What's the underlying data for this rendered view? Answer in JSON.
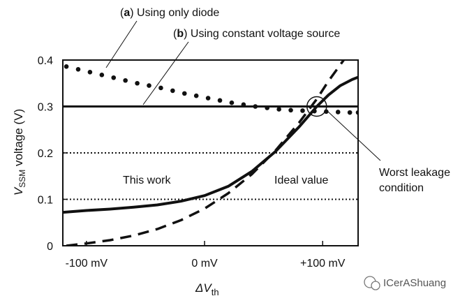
{
  "chart_data": {
    "type": "line",
    "xlabel": "ΔV",
    "xlabel_sub": "th",
    "ylabel_v": "V",
    "ylabel_sub": "SSM",
    "ylabel_rest": " voltage (V)",
    "xlim": [
      -120,
      130
    ],
    "ylim": [
      0,
      0.4
    ],
    "x_ticks": [
      {
        "value": -100,
        "label": "-100 mV"
      },
      {
        "value": 0,
        "label": "0 mV"
      },
      {
        "value": 100,
        "label": "+100 mV"
      }
    ],
    "y_ticks": [
      {
        "value": 0,
        "label": "0"
      },
      {
        "value": 0.1,
        "label": "0.1"
      },
      {
        "value": 0.2,
        "label": "0.2"
      },
      {
        "value": 0.3,
        "label": "0.3"
      },
      {
        "value": 0.4,
        "label": "0.4"
      }
    ],
    "reference_lines": [
      {
        "y": 0.2,
        "style": "dotted"
      },
      {
        "y": 0.1,
        "style": "dotted"
      }
    ],
    "series": [
      {
        "id": "a",
        "style": "dots",
        "x": [
          -117,
          -107,
          -97,
          -87,
          -77,
          -67,
          -57,
          -47,
          -37,
          -27,
          -17,
          -7,
          3,
          13,
          23,
          33,
          43,
          53,
          63,
          73,
          83,
          93,
          103,
          113,
          123,
          130
        ],
        "y": [
          0.386,
          0.38,
          0.374,
          0.368,
          0.362,
          0.356,
          0.35,
          0.345,
          0.34,
          0.334,
          0.328,
          0.323,
          0.318,
          0.313,
          0.308,
          0.304,
          0.3,
          0.297,
          0.294,
          0.292,
          0.291,
          0.29,
          0.289,
          0.288,
          0.287,
          0.287
        ]
      },
      {
        "id": "b",
        "style": "solid",
        "x": [
          -120,
          130
        ],
        "y": [
          0.3,
          0.3
        ]
      },
      {
        "id": "this-work",
        "style": "solid",
        "x": [
          -120,
          -100,
          -80,
          -60,
          -40,
          -20,
          0,
          20,
          40,
          60,
          80,
          95,
          105,
          115,
          125,
          130
        ],
        "y": [
          0.072,
          0.076,
          0.079,
          0.083,
          0.088,
          0.096,
          0.108,
          0.128,
          0.16,
          0.203,
          0.256,
          0.3,
          0.325,
          0.345,
          0.358,
          0.363
        ]
      },
      {
        "id": "ideal",
        "style": "dashed",
        "x": [
          -117,
          -100,
          -80,
          -60,
          -40,
          -20,
          0,
          20,
          40,
          60,
          80,
          95,
          105,
          115,
          122
        ],
        "y": [
          0.0,
          0.005,
          0.012,
          0.022,
          0.036,
          0.055,
          0.08,
          0.113,
          0.154,
          0.205,
          0.265,
          0.316,
          0.355,
          0.39,
          0.415
        ]
      }
    ],
    "highlight_circle": {
      "x": 95,
      "y": 0.3
    },
    "annotations": {
      "a_paren_open": "(",
      "a_letter": "a",
      "a_rest": ") Using only diode",
      "b_paren_open": "(",
      "b_letter": "b",
      "b_rest": ") Using constant voltage source",
      "this_work": "This work",
      "ideal_value": "Ideal value",
      "worst_line1": "Worst leakage",
      "worst_line2": "condition"
    },
    "watermark": "ICerAShuang"
  }
}
